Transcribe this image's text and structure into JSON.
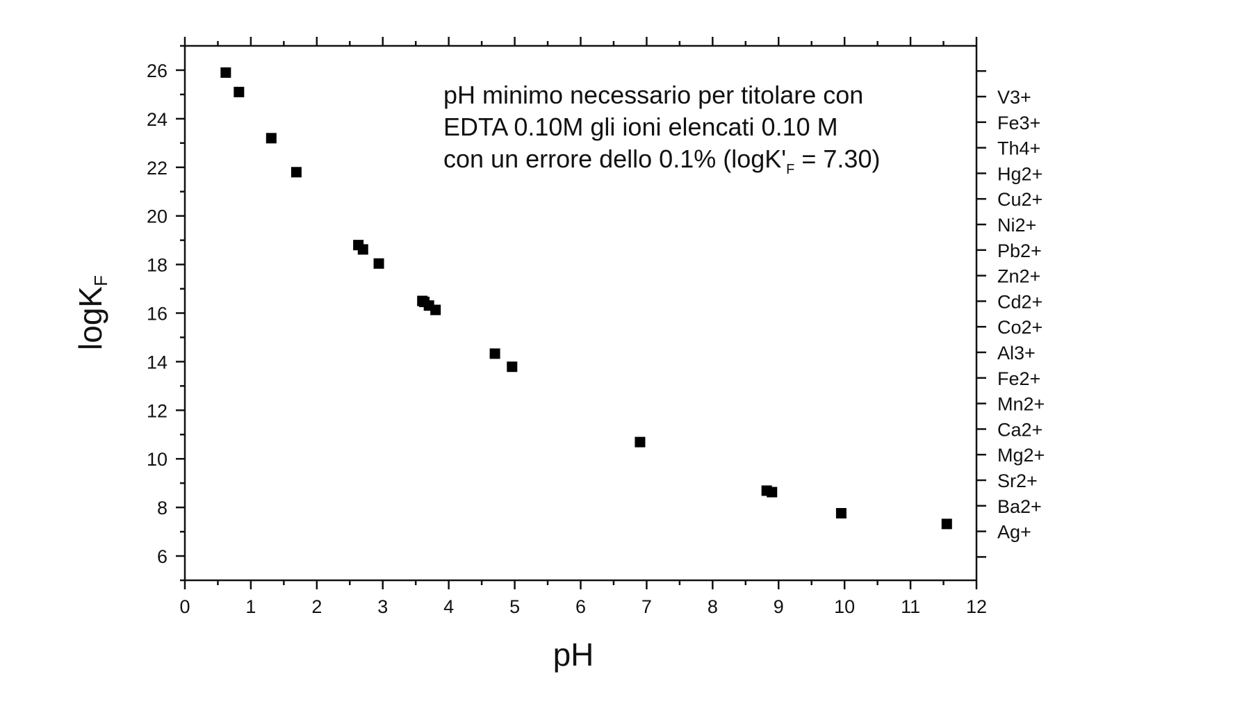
{
  "chart_data": {
    "type": "scatter",
    "title": "",
    "xlabel": "pH",
    "ylabel": {
      "main": "logK",
      "sub": "F"
    },
    "xlim": [
      0,
      12
    ],
    "ylim": [
      5,
      27
    ],
    "x_ticks": [
      0,
      1,
      2,
      3,
      4,
      5,
      6,
      7,
      8,
      9,
      10,
      11,
      12
    ],
    "y_ticks": [
      6,
      8,
      10,
      12,
      14,
      16,
      18,
      20,
      22,
      24,
      26
    ],
    "grid": false,
    "marker": "square",
    "marker_color": "#000000",
    "annotation": {
      "line1": "pH minimo necessario per titolare con",
      "line2": "EDTA 0.10M gli ioni elencati 0.10 M",
      "line3_start": "con un errore dello 0.1% (logK'",
      "line3_sub": "F",
      "line3_end": " = 7.30)"
    },
    "right_axis_labels": [
      "V3+",
      "Fe3+",
      "Th4+",
      "Hg2+",
      "Cu2+",
      "Ni2+",
      "Pb2+",
      "Zn2+",
      "Cd2+",
      "Co2+",
      "Al3+",
      "Fe2+",
      "Mn2+",
      "Ca2+",
      "Mg2+",
      "Sr2+",
      "Ba2+",
      "Ag+"
    ],
    "points": [
      {
        "x": 0.62,
        "y": 25.9
      },
      {
        "x": 0.82,
        "y": 25.1
      },
      {
        "x": 1.31,
        "y": 23.2
      },
      {
        "x": 1.69,
        "y": 21.8
      },
      {
        "x": 2.63,
        "y": 18.8
      },
      {
        "x": 2.7,
        "y": 18.62
      },
      {
        "x": 2.94,
        "y": 18.04
      },
      {
        "x": 3.6,
        "y": 16.5
      },
      {
        "x": 3.63,
        "y": 16.46
      },
      {
        "x": 3.7,
        "y": 16.31
      },
      {
        "x": 3.8,
        "y": 16.13
      },
      {
        "x": 4.7,
        "y": 14.33
      },
      {
        "x": 4.96,
        "y": 13.79
      },
      {
        "x": 6.9,
        "y": 10.69
      },
      {
        "x": 8.82,
        "y": 8.69
      },
      {
        "x": 8.9,
        "y": 8.63
      },
      {
        "x": 9.95,
        "y": 7.76
      },
      {
        "x": 11.55,
        "y": 7.32
      }
    ]
  }
}
